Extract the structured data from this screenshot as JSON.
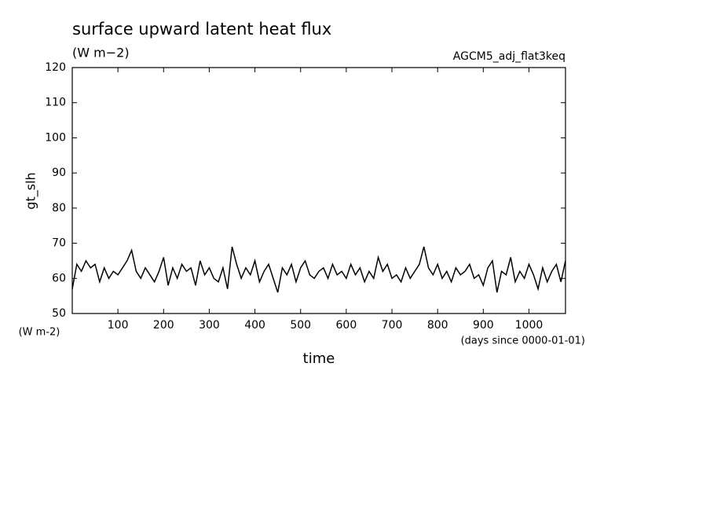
{
  "chart_data": {
    "type": "line",
    "title": "surface upward latent heat flux",
    "units": "(W m−2)",
    "experiment": "AGCM5_adj_flat3keq",
    "y_label": "gt_slh",
    "y_units_label": "(W m-2)",
    "x_label": "time",
    "x_units_label": "(days since 0000-01-01)",
    "color": "#000000",
    "x": [
      0,
      10,
      20,
      30,
      40,
      50,
      60,
      70,
      80,
      90,
      100,
      110,
      120,
      130,
      140,
      150,
      160,
      170,
      180,
      190,
      200,
      210,
      220,
      230,
      240,
      250,
      260,
      270,
      280,
      290,
      300,
      310,
      320,
      330,
      340,
      350,
      360,
      370,
      380,
      390,
      400,
      410,
      420,
      430,
      440,
      450,
      460,
      470,
      480,
      490,
      500,
      510,
      520,
      530,
      540,
      550,
      560,
      570,
      580,
      590,
      600,
      610,
      620,
      630,
      640,
      650,
      660,
      670,
      680,
      690,
      700,
      710,
      720,
      730,
      740,
      750,
      760,
      770,
      780,
      790,
      800,
      810,
      820,
      830,
      840,
      850,
      860,
      870,
      880,
      890,
      900,
      910,
      920,
      930,
      940,
      950,
      960,
      970,
      980,
      990,
      1000,
      1010,
      1020,
      1030,
      1040,
      1050,
      1060,
      1070,
      1080
    ],
    "values": [
      57,
      64,
      62,
      65,
      63,
      64,
      59,
      63,
      60,
      62,
      61,
      63,
      65,
      68,
      62,
      60,
      63,
      61,
      59,
      62,
      66,
      58,
      63,
      60,
      64,
      62,
      63,
      58,
      65,
      61,
      63,
      60,
      59,
      63,
      57,
      69,
      64,
      60,
      63,
      61,
      65,
      59,
      62,
      64,
      60,
      56,
      63,
      61,
      64,
      59,
      63,
      65,
      61,
      60,
      62,
      63,
      60,
      64,
      61,
      62,
      60,
      64,
      61,
      63,
      59,
      62,
      60,
      66,
      62,
      64,
      60,
      61,
      59,
      63,
      60,
      62,
      64,
      69,
      63,
      61,
      64,
      60,
      62,
      59,
      63,
      61,
      62,
      64,
      60,
      61,
      58,
      63,
      65,
      56,
      62,
      61,
      66,
      59,
      62,
      60,
      64,
      61,
      57,
      63,
      59,
      62,
      64,
      59,
      65
    ],
    "xlim": [
      0,
      1080
    ],
    "ylim": [
      50,
      120
    ],
    "xticks": [
      100,
      200,
      300,
      400,
      500,
      600,
      700,
      800,
      900,
      1000
    ],
    "yticks": [
      50,
      60,
      70,
      80,
      90,
      100,
      110,
      120
    ]
  }
}
